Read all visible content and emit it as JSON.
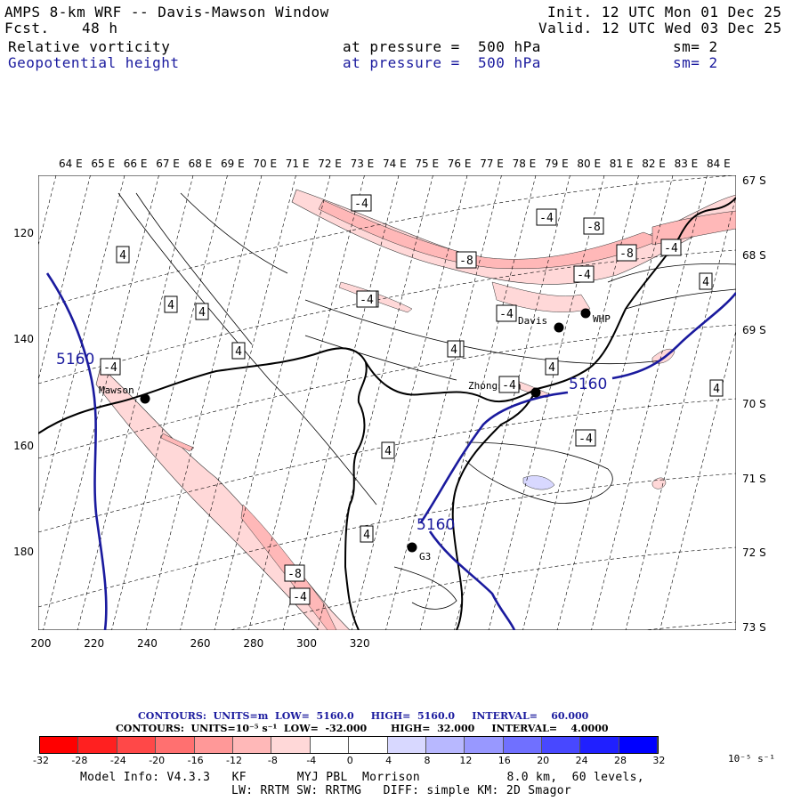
{
  "header": {
    "title": "AMPS 8-km WRF -- Davis-Mawson Window",
    "init": "Init. 12 UTC Mon 01 Dec 25",
    "fcst_label": "Fcst.",
    "fcst_value": "48 h",
    "valid": "Valid. 12 UTC Wed 03 Dec 25",
    "field1": "Relative vorticity",
    "field1_level": "at pressure =  500 hPa",
    "field1_sm": "sm= 2",
    "field2": "Geopotential height",
    "field2_level": "at pressure =  500 hPa",
    "field2_sm": "sm= 2"
  },
  "axes": {
    "lon_labels": [
      "64 E",
      "65 E",
      "66 E",
      "67 E",
      "68 E",
      "69 E",
      "70 E",
      "71 E",
      "72 E",
      "73 E",
      "74 E",
      "75 E",
      "76 E",
      "77 E",
      "78 E",
      "79 E",
      "80 E",
      "81 E",
      "82 E",
      "83 E",
      "84 E"
    ],
    "lat_labels": [
      "67 S",
      "68 S",
      "69 S",
      "70 S",
      "71 S",
      "72 S",
      "73 S"
    ],
    "y_grid_labels": [
      "120",
      "140",
      "160",
      "180"
    ],
    "x_grid_labels": [
      "200",
      "220",
      "240",
      "260",
      "280",
      "300",
      "320"
    ]
  },
  "map_labels": {
    "stations": [
      "Mawson",
      "Davis",
      "WHP",
      "Zhongshan",
      "G3"
    ],
    "height_contour": [
      "5160",
      "5160",
      "5160"
    ],
    "vorticity_boxes": [
      "-4",
      "-4",
      "-8",
      "-4",
      "-8",
      "-8",
      "-4",
      "-4",
      "4",
      "4",
      "4",
      "4",
      "-4",
      "4",
      "-4",
      "4",
      "-4",
      "4",
      "-4",
      "4",
      "4",
      "-4",
      "4",
      "-8",
      "-4",
      "4"
    ]
  },
  "contour_info": {
    "line1": "CONTOURS:  UNITS=m  LOW=  5160.0     HIGH=  5160.0     INTERVAL=    60.000",
    "line2": "CONTOURS:  UNITS=10⁻⁵ s⁻¹  LOW=  -32.000       HIGH=  32.000     INTERVAL=    4.0000"
  },
  "colorbar": {
    "colors": [
      "#ff0000",
      "#ff2020",
      "#ff4848",
      "#ff7070",
      "#ff9898",
      "#ffb8b8",
      "#ffd8d8",
      "#ffffff",
      "#ffffff",
      "#d8d8ff",
      "#b8b8ff",
      "#9898ff",
      "#7070ff",
      "#4848ff",
      "#2020ff",
      "#0000ff"
    ],
    "ticks": [
      "-32",
      "-28",
      "-24",
      "-20",
      "-16",
      "-12",
      "-8",
      "-4",
      "0",
      "4",
      "8",
      "12",
      "16",
      "20",
      "24",
      "28",
      "32"
    ],
    "units": "10⁻⁵ s⁻¹"
  },
  "footer": {
    "line1": "Model Info: V4.3.3   KF       MYJ PBL  Morrison            8.0 km,  60 levels,",
    "line2": "LW: RRTM SW: RRTMG   DIFF: simple KM: 2D Smagor"
  }
}
